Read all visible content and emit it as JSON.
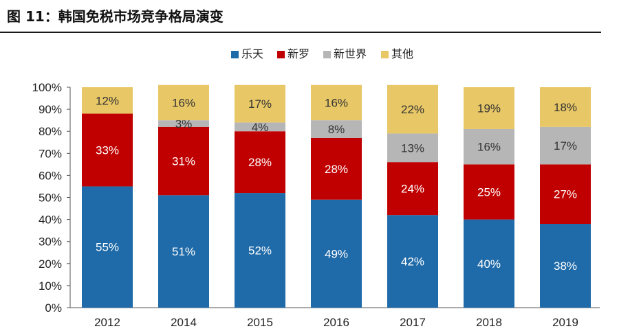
{
  "figure": {
    "title": "图 11：韩国免税市场竞争格局演变"
  },
  "chart_data": {
    "type": "bar",
    "stacked": true,
    "categories": [
      "2012",
      "2014",
      "2015",
      "2016",
      "2017",
      "2018",
      "2019"
    ],
    "series": [
      {
        "name": "乐天",
        "color": "#1F6AA8",
        "values": [
          55,
          51,
          52,
          49,
          42,
          40,
          38
        ],
        "labels": [
          "55%",
          "51%",
          "52%",
          "49%",
          "42%",
          "40%",
          "38%"
        ]
      },
      {
        "name": "新罗",
        "color": "#C00000",
        "values": [
          33,
          31,
          28,
          28,
          24,
          25,
          27
        ],
        "labels": [
          "33%",
          "31%",
          "28%",
          "28%",
          "24%",
          "25%",
          "27%"
        ]
      },
      {
        "name": "新世界",
        "color": "#B6B6B6",
        "values": [
          0,
          3,
          4,
          8,
          13,
          16,
          17
        ],
        "labels": [
          "",
          "3%",
          "4%",
          "8%",
          "13%",
          "16%",
          "17%"
        ]
      },
      {
        "name": "其他",
        "color": "#E8C766",
        "values": [
          12,
          16,
          17,
          16,
          22,
          19,
          18
        ],
        "labels": [
          "12%",
          "16%",
          "17%",
          "16%",
          "22%",
          "19%",
          "18%"
        ]
      }
    ],
    "y_ticks": [
      "0%",
      "10%",
      "20%",
      "30%",
      "40%",
      "50%",
      "60%",
      "70%",
      "80%",
      "90%",
      "100%"
    ],
    "ylim": [
      0,
      100
    ],
    "legend_position": "top-center",
    "grid": false
  }
}
